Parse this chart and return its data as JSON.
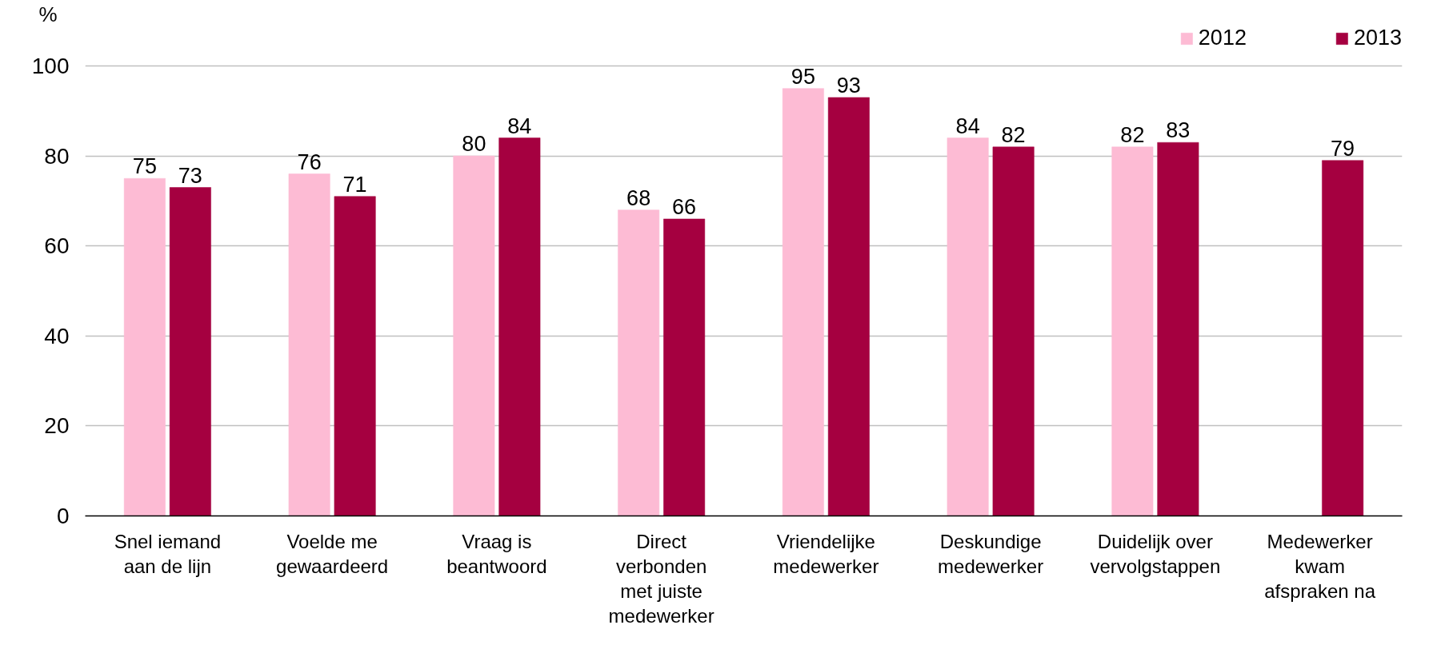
{
  "chart_data": {
    "type": "bar",
    "ylabel": "%",
    "categories": [
      "Snel iemand\naan de lijn",
      "Voelde me\ngewaardeerd",
      "Vraag is\nbeantwoord",
      "Direct\nverbonden\nmet juiste\nmedewerker",
      "Vriendelijke\nmedewerker",
      "Deskundige\nmedewerker",
      "Duidelijk over\nvervolgstappen",
      "Medewerker\nkwam\nafspraken na"
    ],
    "series": [
      {
        "name": "2012",
        "color": "#fdbbd4",
        "values": [
          75,
          76,
          80,
          68,
          95,
          84,
          82,
          null
        ]
      },
      {
        "name": "2013",
        "color": "#a50040",
        "values": [
          73,
          71,
          84,
          66,
          93,
          82,
          83,
          79
        ]
      }
    ],
    "ylim": [
      0,
      100
    ],
    "yticks": [
      0,
      20,
      40,
      60,
      80,
      100
    ],
    "grid": "y",
    "legend": "top right",
    "data_labels": true
  }
}
